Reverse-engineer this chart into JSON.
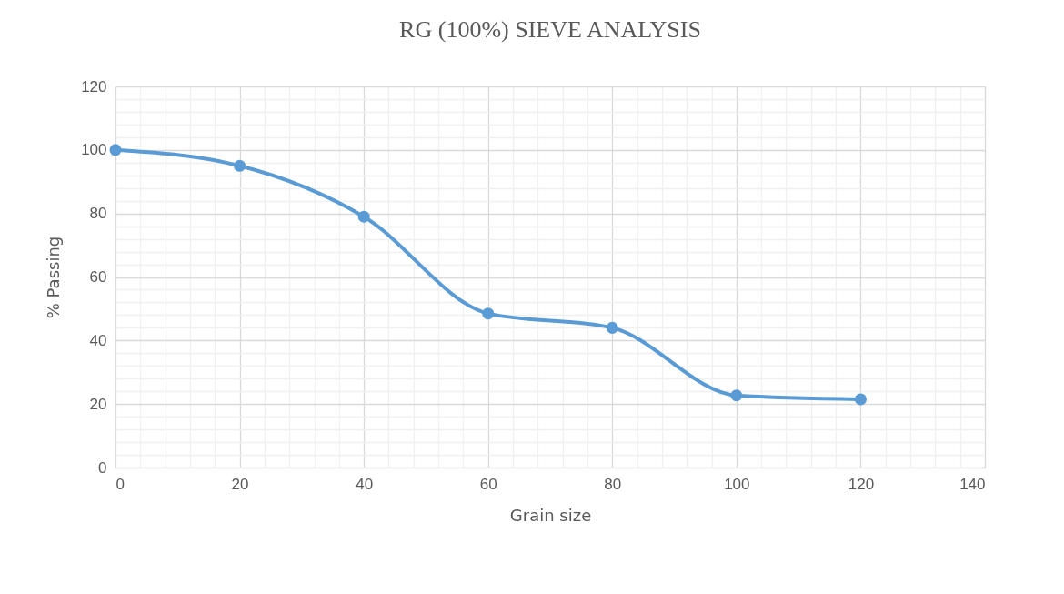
{
  "chart_data": {
    "type": "line",
    "title": "RG (100%) SIEVE  ANALYSIS",
    "xlabel": "Grain size",
    "ylabel": "% Passing",
    "x": [
      0,
      20,
      40,
      60,
      80,
      100,
      120
    ],
    "series": [
      {
        "color": "#5b9bd5",
        "values": [
          100,
          95,
          79,
          48.5,
          44,
          22.7,
          21.5
        ]
      }
    ],
    "xlim": [
      0,
      140
    ],
    "xticks": [
      0,
      20,
      40,
      60,
      80,
      100,
      120,
      140
    ],
    "ylim": [
      0,
      120
    ],
    "yticks": [
      0,
      20,
      40,
      60,
      80,
      100,
      120
    ],
    "grid": true,
    "marker": "circle",
    "line_style": "solid"
  }
}
